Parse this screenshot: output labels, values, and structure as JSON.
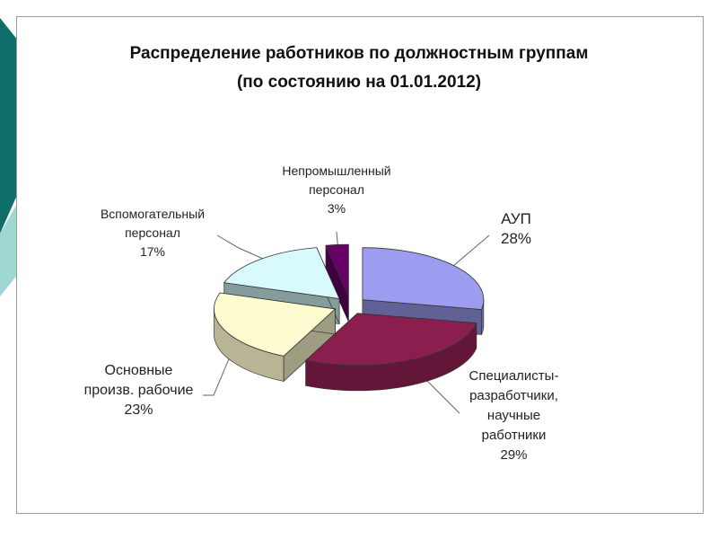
{
  "chart_data": {
    "type": "pie",
    "title": "Распределение работников по должностным группам",
    "subtitle": "(по состоянию на 01.01.2012)",
    "slices": [
      {
        "id": "aup",
        "label_lines": [
          "АУП"
        ],
        "value": 28,
        "value_label": "28%",
        "color": "#9c9cf0",
        "exploded": true
      },
      {
        "id": "spec",
        "label_lines": [
          "Специалисты-",
          "разработчики,",
          "научные",
          "работники"
        ],
        "value": 29,
        "value_label": "29%",
        "color": "#8a1e4e",
        "exploded": true
      },
      {
        "id": "main",
        "label_lines": [
          "Основные",
          "произв. рабочие"
        ],
        "value": 23,
        "value_label": "23%",
        "color": "#fffbd0",
        "exploded": true
      },
      {
        "id": "aux",
        "label_lines": [
          "Вспомогательный",
          "персонал"
        ],
        "value": 17,
        "value_label": "17%",
        "color": "#d8fafc",
        "exploded": true
      },
      {
        "id": "nonind",
        "label_lines": [
          "Непромышленный",
          "персонал"
        ],
        "value": 3,
        "value_label": "3%",
        "color": "#660066",
        "exploded": true
      }
    ],
    "start_angle_deg": -90,
    "three_d": true,
    "legend": "none",
    "decor_colors": {
      "teal_dark": "#0f6e6a",
      "teal_light": "#9fd8d3"
    }
  }
}
